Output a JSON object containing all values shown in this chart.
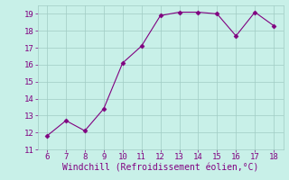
{
  "x": [
    6,
    7,
    8,
    9,
    10,
    11,
    12,
    13,
    14,
    15,
    16,
    17,
    18
  ],
  "y": [
    11.8,
    12.7,
    12.1,
    13.4,
    16.1,
    17.1,
    18.9,
    19.1,
    19.1,
    19.0,
    17.7,
    19.1,
    18.3
  ],
  "line_color": "#800080",
  "marker": "D",
  "marker_size": 2.5,
  "xlabel": "Windchill (Refroidissement éolien,°C)",
  "xlim": [
    5.5,
    18.5
  ],
  "ylim": [
    11,
    19.5
  ],
  "xticks": [
    6,
    7,
    8,
    9,
    10,
    11,
    12,
    13,
    14,
    15,
    16,
    17,
    18
  ],
  "yticks": [
    11,
    12,
    13,
    14,
    15,
    16,
    17,
    18,
    19
  ],
  "background_color": "#c8f0e8",
  "grid_color": "#a0ccc4",
  "label_color": "#800080",
  "tick_color": "#800080",
  "font_size": 6.5,
  "xlabel_fontsize": 7.0
}
